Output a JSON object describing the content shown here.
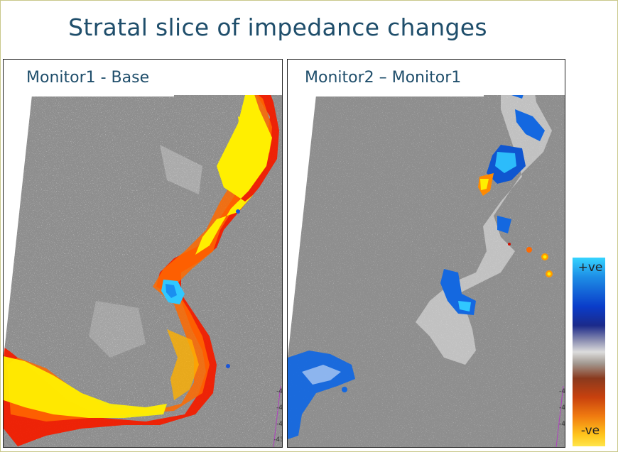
{
  "title": "Stratal slice of impedance changes",
  "panels": [
    {
      "label": "Monitor1 - Base"
    },
    {
      "label": "Monitor2 – Monitor1"
    }
  ],
  "colorbar": {
    "top_label": "+ve",
    "bottom_label": "-ve"
  },
  "colors": {
    "title": "#1f4e6b",
    "background_gray": "#8e8e8e",
    "negative": "#ff1e00",
    "strong_negative": "#ffff00",
    "positive": "#1468e0",
    "strong_positive": "#30d0ff"
  }
}
